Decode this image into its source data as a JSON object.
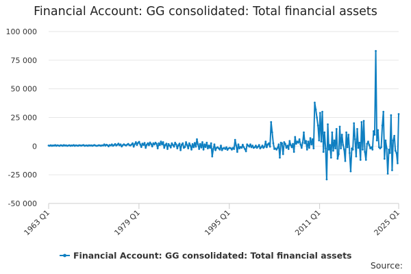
{
  "chart_data": {
    "type": "line",
    "title": "Financial Account: GG consolidated: Total financial assets",
    "xlabel": "",
    "ylabel": "",
    "x_ticks": [
      "1963 Q1",
      "1979 Q1",
      "1995 Q1",
      "2011 Q1",
      "2025 Q1"
    ],
    "y_ticks": [
      "100 000",
      "75 000",
      "50 000",
      "25 000",
      "0",
      "-25 000",
      "-50 000"
    ],
    "y_tick_values": [
      100000,
      75000,
      50000,
      25000,
      0,
      -25000,
      -50000
    ],
    "ylim": [
      -50000,
      100000
    ],
    "xlim": [
      "1963 Q1",
      "2025 Q1"
    ],
    "grid": "horizontal",
    "legend_position": "bottom",
    "color": "#0f7fc1",
    "series": [
      {
        "name": "Financial Account: GG consolidated: Total financial assets",
        "start": "1963 Q1",
        "values": [
          500,
          300,
          800,
          200,
          600,
          400,
          900,
          300,
          700,
          500,
          200,
          800,
          600,
          300,
          900,
          400,
          700,
          200,
          500,
          800,
          300,
          600,
          400,
          900,
          200,
          700,
          500,
          300,
          800,
          600,
          400,
          700,
          900,
          300,
          500,
          600,
          200,
          800,
          400,
          700,
          300,
          600,
          900,
          500,
          200,
          400,
          800,
          600,
          300,
          700,
          500,
          1500,
          400,
          1200,
          800,
          -200,
          1000,
          600,
          1500,
          300,
          900,
          1800,
          500,
          1200,
          2200,
          700,
          1500,
          -300,
          800,
          1600,
          1000,
          500,
          1300,
          2000,
          900,
          600,
          1400,
          2500,
          -500,
          1800,
          3500,
          1000,
          2800,
          3800,
          1500,
          -800,
          2200,
          1000,
          2800,
          -1500,
          1200,
          2500,
          800,
          3200,
          1800,
          -300,
          2500,
          1500,
          3000,
          2000,
          -2000,
          2500,
          1000,
          4000,
          1500,
          3500,
          -1500,
          1000,
          2200,
          -2500,
          1800,
          500,
          -1200,
          2500,
          1000,
          -500,
          3000,
          1500,
          -2000,
          800,
          2200,
          -3500,
          1200,
          2500,
          -1500,
          -800,
          3500,
          1000,
          -2000,
          2500,
          500,
          -3000,
          1800,
          -1000,
          2800,
          -500,
          6000,
          1500,
          -2500,
          2000,
          -1200,
          3500,
          -3000,
          1500,
          -800,
          3000,
          -2000,
          500,
          -1500,
          2500,
          -9000,
          -2500,
          1500,
          -3500,
          -1500,
          -1000,
          -2000,
          -3000,
          500,
          -3500,
          -2000,
          -1500,
          -2500,
          -1000,
          -3200,
          -2000,
          -1500,
          -1800,
          -3000,
          -1500,
          -2500,
          5500,
          500,
          -5000,
          1500,
          -2000,
          -800,
          -1500,
          1200,
          -1000,
          -2500,
          -4500,
          1500,
          500,
          -500,
          1500,
          -1000,
          500,
          -1500,
          -1000,
          500,
          -1500,
          -500,
          1000,
          -2000,
          -1000,
          500,
          -1500,
          -500,
          4000,
          -1000,
          1500,
          2500,
          -500,
          21000,
          12000,
          2500,
          -2500,
          -2000,
          -3000,
          -1500,
          1500,
          -10000,
          3000,
          2500,
          -7000,
          3500,
          2000,
          -1500,
          500,
          -2500,
          4500,
          1000,
          -1000,
          2000,
          -5000,
          8000,
          2000,
          4000,
          3000,
          6000,
          1500,
          -1500,
          3000,
          12000,
          2500,
          4500,
          -3000,
          4000,
          -1500,
          7000,
          1500,
          6000,
          -2000,
          38000,
          32000,
          25000,
          18000,
          5000,
          29000,
          4000,
          30000,
          -5000,
          12000,
          -2000,
          -29000,
          19000,
          -3000,
          1000,
          -10000,
          12000,
          -4000,
          5000,
          -2000,
          15000,
          -11000,
          -7000,
          17000,
          -2000,
          10000,
          1000,
          -3000,
          -13000,
          12000,
          -1000,
          10000,
          -6000,
          -22000,
          -2000,
          -3000,
          20000,
          6000,
          -9000,
          15000,
          -1500,
          3000,
          -12000,
          21000,
          -3000,
          22000,
          -5000,
          -12000,
          2000,
          4000,
          1000,
          -2000,
          -1000,
          -3000,
          13000,
          10000,
          83000,
          5000,
          14000,
          -1000,
          -2000,
          -1000,
          18000,
          30000,
          -11000,
          5000,
          -2000,
          -24000,
          -3000,
          -6000,
          27000,
          -21000,
          5000,
          9000,
          -4000,
          -6000,
          -15000,
          28000
        ]
      }
    ]
  },
  "legend": {
    "label": "Financial Account: GG consolidated: Total financial assets"
  },
  "source": {
    "label": "Source:"
  }
}
